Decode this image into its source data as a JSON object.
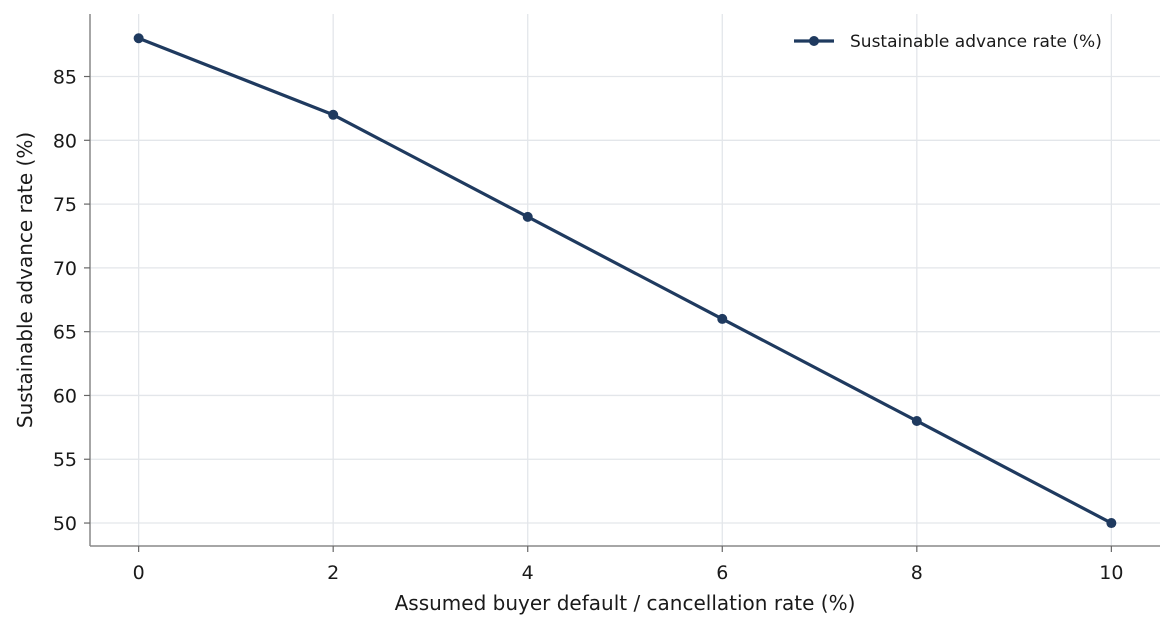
{
  "chart_data": {
    "type": "line",
    "title": "",
    "xlabel": "Assumed buyer default / cancellation rate (%)",
    "ylabel": "Sustainable advance rate (%)",
    "x": [
      0,
      2,
      4,
      6,
      8,
      10
    ],
    "x_ticks": [
      "0",
      "2",
      "4",
      "6",
      "8",
      "10"
    ],
    "y_ticks": [
      "50",
      "55",
      "60",
      "65",
      "70",
      "75",
      "80",
      "85"
    ],
    "xlim": [
      -0.5,
      10.5
    ],
    "ylim": [
      48.2,
      89.9
    ],
    "grid": true,
    "legend_position": "top-right",
    "series": [
      {
        "name": "Sustainable advance rate (%)",
        "values": [
          88,
          82,
          74,
          66,
          58,
          50
        ],
        "color": "#1f3a5f",
        "marker": "circle"
      }
    ]
  }
}
